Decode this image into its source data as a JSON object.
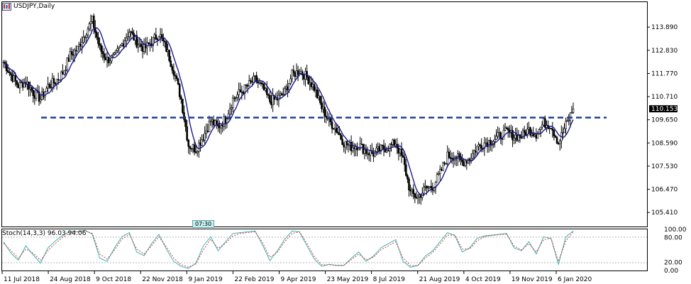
{
  "header": {
    "title": "USDJPY,Daily"
  },
  "time_badge": "07:30",
  "stoch_header": "Stoch(14,3,3) 96.03 94.06",
  "colors": {
    "background": "#ffffff",
    "candles": "#000000",
    "ma_line": "#1a1a8c",
    "support_line": "#1f3c9c",
    "stoch_main": "#3cb4b4",
    "stoch_signal": "#d23c3c",
    "price_tag_bg": "#000000",
    "price_tag_fg": "#ffffff"
  },
  "chart_data": [
    {
      "type": "candlestick",
      "title": "USDJPY,Daily",
      "price_axis": {
        "ticks": [
          "113.890",
          "112.830",
          "111.770",
          "110.710",
          "109.650",
          "108.590",
          "107.530",
          "106.470",
          "105.410"
        ],
        "tick_values": [
          113.89,
          112.83,
          111.77,
          110.71,
          109.65,
          108.59,
          107.53,
          106.47,
          105.41
        ],
        "range": [
          104.8,
          115.0
        ]
      },
      "current_price": {
        "label": "110.153",
        "value": 110.153
      },
      "support_level": {
        "value": 109.75,
        "style": "dashed",
        "start_date": "24 Aug 2018"
      },
      "x_axis": {
        "labels": [
          "11 Jul 2018",
          "24 Aug 2018",
          "9 Oct 2018",
          "22 Nov 2018",
          "9 Jan 2019",
          "22 Feb 2019",
          "9 Apr 2019",
          "23 May 2019",
          "8 Jul 2019",
          "21 Aug 2019",
          "4 Oct 2019",
          "19 Nov 2019",
          "6 Jan 2020"
        ],
        "range": [
          "11 Jul 2018",
          "9 Jan 2020"
        ]
      },
      "closes": {
        "dates": [
          "11 Jul 2018",
          "18 Jul 2018",
          "25 Jul 2018",
          "1 Aug 2018",
          "8 Aug 2018",
          "15 Aug 2018",
          "24 Aug 2018",
          "31 Aug 2018",
          "7 Sep 2018",
          "14 Sep 2018",
          "21 Sep 2018",
          "28 Sep 2018",
          "3 Oct 2018",
          "9 Oct 2018",
          "16 Oct 2018",
          "23 Oct 2018",
          "30 Oct 2018",
          "6 Nov 2018",
          "13 Nov 2018",
          "16 Nov 2018",
          "22 Nov 2018",
          "29 Nov 2018",
          "6 Dec 2018",
          "13 Dec 2018",
          "20 Dec 2018",
          "27 Dec 2018",
          "3 Jan 2019",
          "9 Jan 2019",
          "16 Jan 2019",
          "23 Jan 2019",
          "30 Jan 2019",
          "6 Feb 2019",
          "13 Feb 2019",
          "22 Feb 2019",
          "1 Mar 2019",
          "8 Mar 2019",
          "15 Mar 2019",
          "22 Mar 2019",
          "29 Mar 2019",
          "9 Apr 2019",
          "16 Apr 2019",
          "23 Apr 2019",
          "30 Apr 2019",
          "7 May 2019",
          "14 May 2019",
          "23 May 2019",
          "30 May 2019",
          "6 Jun 2019",
          "13 Jun 2019",
          "20 Jun 2019",
          "27 Jun 2019",
          "8 Jul 2019",
          "15 Jul 2019",
          "22 Jul 2019",
          "29 Jul 2019",
          "5 Aug 2019",
          "12 Aug 2019",
          "21 Aug 2019",
          "28 Aug 2019",
          "4 Sep 2019",
          "11 Sep 2019",
          "18 Sep 2019",
          "25 Sep 2019",
          "4 Oct 2019",
          "11 Oct 2019",
          "18 Oct 2019",
          "25 Oct 2019",
          "1 Nov 2019",
          "8 Nov 2019",
          "19 Nov 2019",
          "26 Nov 2019",
          "3 Dec 2019",
          "10 Dec 2019",
          "17 Dec 2019",
          "24 Dec 2019",
          "31 Dec 2019",
          "6 Jan 2020",
          "9 Jan 2020"
        ],
        "values": [
          112.3,
          111.7,
          111.2,
          111.4,
          110.9,
          110.6,
          111.2,
          111.4,
          111.8,
          112.6,
          112.9,
          113.6,
          114.2,
          112.9,
          112.4,
          112.5,
          113.1,
          113.7,
          113.2,
          112.9,
          113.2,
          113.6,
          112.9,
          111.9,
          110.6,
          108.5,
          108.3,
          108.9,
          109.6,
          109.3,
          109.7,
          110.6,
          110.9,
          111.2,
          111.5,
          111.1,
          110.5,
          110.6,
          110.9,
          111.7,
          111.9,
          111.6,
          111.1,
          110.2,
          109.6,
          109.2,
          108.6,
          108.4,
          108.5,
          108.2,
          108.1,
          108.3,
          108.4,
          108.6,
          107.8,
          106.3,
          106.1,
          106.5,
          106.6,
          107.2,
          108.0,
          108.0,
          107.7,
          107.9,
          108.4,
          108.6,
          108.7,
          108.9,
          109.1,
          108.9,
          108.9,
          109.2,
          109.0,
          109.5,
          109.4,
          108.6,
          109.4,
          110.15
        ]
      }
    },
    {
      "type": "line",
      "title": "Stoch(14,3,3) 96.03 94.06",
      "y_axis": {
        "ticks": [
          "100.00",
          "80.00",
          "20.00",
          "0.00"
        ],
        "tick_values": [
          100,
          80,
          20,
          0
        ],
        "range": [
          0,
          100
        ]
      },
      "series": [
        {
          "values": [
            70,
            42,
            25,
            60,
            38,
            18,
            55,
            72,
            85,
            96,
            94,
            98,
            88,
            30,
            22,
            55,
            82,
            92,
            45,
            36,
            65,
            88,
            52,
            22,
            10,
            5,
            18,
            60,
            82,
            48,
            70,
            90,
            92,
            94,
            96,
            62,
            24,
            48,
            76,
            96,
            94,
            60,
            28,
            10,
            15,
            12,
            12,
            30,
            45,
            22,
            35,
            55,
            65,
            75,
            22,
            8,
            12,
            35,
            48,
            70,
            92,
            85,
            45,
            55,
            78,
            84,
            86,
            88,
            90,
            55,
            48,
            70,
            40,
            82,
            78,
            15,
            82,
            96
          ]
        },
        {
          "values": [
            66,
            48,
            30,
            52,
            42,
            25,
            48,
            66,
            80,
            92,
            94,
            96,
            90,
            40,
            28,
            50,
            76,
            88,
            52,
            40,
            60,
            82,
            58,
            30,
            14,
            8,
            16,
            50,
            76,
            54,
            66,
            84,
            90,
            92,
            94,
            68,
            32,
            44,
            70,
            90,
            94,
            66,
            34,
            14,
            14,
            13,
            13,
            26,
            40,
            26,
            32,
            50,
            60,
            70,
            30,
            12,
            12,
            30,
            44,
            64,
            86,
            86,
            52,
            52,
            72,
            82,
            85,
            87,
            88,
            60,
            50,
            65,
            45,
            75,
            78,
            22,
            72,
            94
          ]
        }
      ]
    }
  ]
}
